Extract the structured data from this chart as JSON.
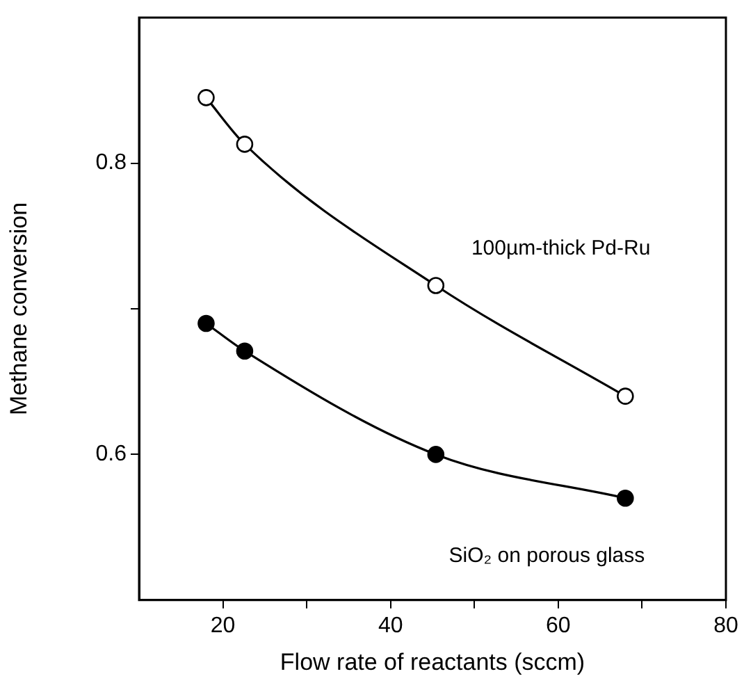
{
  "chart_data": {
    "type": "line",
    "xlabel": "Flow rate of reactants (sccm)",
    "ylabel": "Methane conversion",
    "xlim": [
      10,
      80
    ],
    "xticks": [
      20,
      {
        "value": 30,
        "label": null
      },
      40,
      {
        "value": 50,
        "label": null
      },
      60,
      {
        "value": 70,
        "label": null
      },
      80
    ],
    "ylim": [
      0.5,
      0.9
    ],
    "yticks": [
      0.6,
      {
        "value": 0.7,
        "label": null
      },
      0.8
    ],
    "grid": false,
    "legend": false,
    "marker": "circle",
    "line_style": "solid",
    "series": [
      {
        "name": "100µm-thick Pd-Ru",
        "color": "#000000",
        "x": [
          18,
          22.6,
          45.4,
          68
        ],
        "values": [
          0.845,
          0.813,
          0.716,
          0.64
        ]
      },
      {
        "name": "SiO₂ on porous glass",
        "color": "#000000",
        "x": [
          18,
          22.6,
          45.4,
          68
        ],
        "values": [
          0.69,
          0.671,
          0.6,
          0.57
        ]
      }
    ]
  }
}
